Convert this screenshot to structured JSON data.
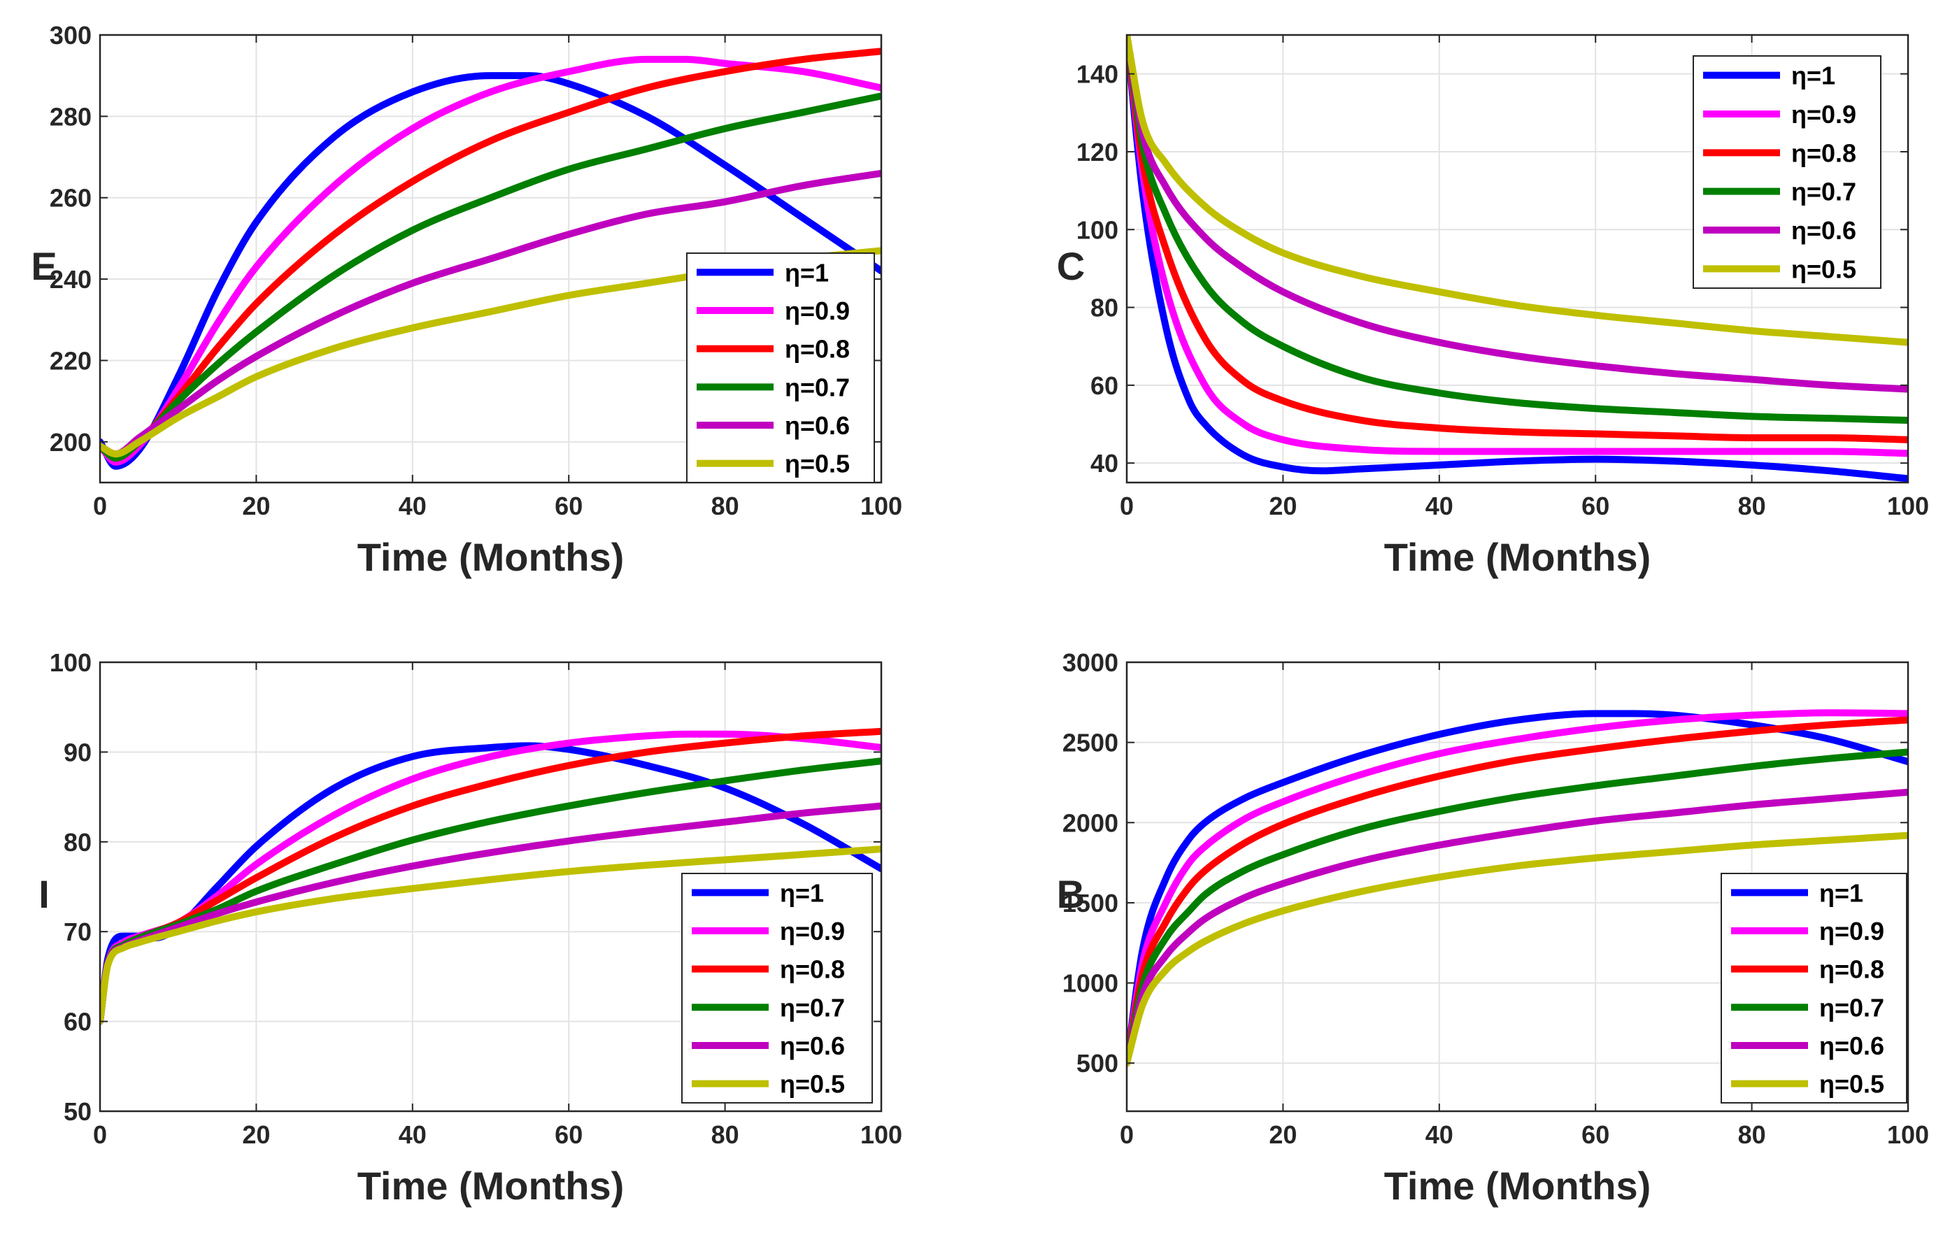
{
  "figure": {
    "eta_symbol": "η",
    "series_colors": {
      "1": "#0000ff",
      "0.9": "#ff00ff",
      "0.8": "#ff0000",
      "0.7": "#007f00",
      "0.6": "#bf00bf",
      "0.5": "#bfbf00"
    }
  },
  "chart_data": [
    {
      "id": "E",
      "type": "line",
      "ylabel": "E",
      "xlabel": "Time (Months)",
      "xlim": [
        0,
        100
      ],
      "ylim": [
        190,
        300
      ],
      "xticks": [
        0,
        20,
        40,
        60,
        80,
        100
      ],
      "yticks": [
        200,
        220,
        240,
        260,
        280,
        300
      ],
      "grid": true,
      "legend_position": "lower-right",
      "legend_order": [
        "η=1",
        "η=0.9",
        "η=0.8",
        "η=0.7",
        "η=0.6",
        "η=0.5"
      ],
      "series": [
        {
          "name": "η=1",
          "eta": "1",
          "x": [
            0,
            2,
            5,
            10,
            15,
            20,
            30,
            40,
            50,
            55,
            60,
            70,
            80,
            90,
            100
          ],
          "values": [
            200,
            194,
            198,
            216,
            237,
            254,
            275,
            286,
            290,
            290,
            288,
            280,
            268,
            255,
            242
          ]
        },
        {
          "name": "η=0.9",
          "eta": "0.9",
          "x": [
            0,
            2,
            5,
            10,
            15,
            20,
            30,
            40,
            50,
            60,
            70,
            75,
            80,
            90,
            100
          ],
          "values": [
            199,
            195,
            199,
            213,
            229,
            243,
            263,
            277,
            286,
            291,
            294,
            294,
            293,
            291,
            287
          ]
        },
        {
          "name": "η=0.8",
          "eta": "0.8",
          "x": [
            0,
            2,
            5,
            10,
            15,
            20,
            30,
            40,
            50,
            60,
            70,
            80,
            90,
            100
          ],
          "values": [
            199,
            196,
            200,
            211,
            223,
            234,
            251,
            264,
            274,
            281,
            287,
            291,
            294,
            296
          ]
        },
        {
          "name": "η=0.7",
          "eta": "0.7",
          "x": [
            0,
            2,
            5,
            10,
            15,
            20,
            30,
            40,
            50,
            60,
            70,
            80,
            90,
            100
          ],
          "values": [
            199,
            196,
            200,
            210,
            219,
            227,
            241,
            252,
            260,
            267,
            272,
            277,
            281,
            285
          ]
        },
        {
          "name": "η=0.6",
          "eta": "0.6",
          "x": [
            0,
            2,
            5,
            10,
            15,
            20,
            30,
            40,
            50,
            60,
            70,
            80,
            90,
            100
          ],
          "values": [
            199,
            197,
            201,
            208,
            215,
            221,
            231,
            239,
            245,
            251,
            256,
            259,
            263,
            266
          ]
        },
        {
          "name": "η=0.5",
          "eta": "0.5",
          "x": [
            0,
            2,
            5,
            10,
            15,
            20,
            30,
            40,
            50,
            60,
            70,
            80,
            90,
            100
          ],
          "values": [
            199,
            197,
            200,
            206,
            211,
            216,
            223,
            228,
            232,
            236,
            239,
            242,
            245,
            247
          ]
        }
      ]
    },
    {
      "id": "C",
      "type": "line",
      "ylabel": "C",
      "xlabel": "Time (Months)",
      "xlim": [
        0,
        100
      ],
      "ylim": [
        35,
        150
      ],
      "xticks": [
        0,
        20,
        40,
        60,
        80,
        100
      ],
      "yticks": [
        40,
        60,
        80,
        100,
        120,
        140
      ],
      "grid": true,
      "legend_position": "top-right",
      "legend_order": [
        "η=1",
        "η=0.9",
        "η=0.8",
        "η=0.7",
        "η=0.6",
        "η=0.5"
      ],
      "series": [
        {
          "name": "η=1",
          "eta": "1",
          "x": [
            0,
            2,
            5,
            8,
            10,
            15,
            20,
            25,
            30,
            40,
            50,
            60,
            70,
            80,
            90,
            100
          ],
          "values": [
            150,
            110,
            75,
            56,
            50,
            42,
            39,
            38,
            38.5,
            39.5,
            40.5,
            41,
            40.5,
            39.5,
            38,
            36
          ]
        },
        {
          "name": "η=0.9",
          "eta": "0.9",
          "x": [
            0,
            2,
            5,
            10,
            15,
            20,
            30,
            40,
            50,
            60,
            70,
            80,
            90,
            100
          ],
          "values": [
            150,
            115,
            85,
            60,
            50,
            46,
            43.5,
            43,
            43,
            43,
            43,
            43,
            43,
            42.5
          ]
        },
        {
          "name": "η=0.8",
          "eta": "0.8",
          "x": [
            0,
            2,
            5,
            10,
            15,
            20,
            30,
            40,
            50,
            60,
            70,
            80,
            90,
            100
          ],
          "values": [
            150,
            118,
            95,
            72,
            61,
            56,
            51,
            49,
            48,
            47.5,
            47,
            46.5,
            46.5,
            46
          ]
        },
        {
          "name": "η=0.7",
          "eta": "0.7",
          "x": [
            0,
            2,
            5,
            10,
            15,
            20,
            30,
            40,
            50,
            60,
            70,
            80,
            90,
            100
          ],
          "values": [
            150,
            122,
            104,
            86,
            76,
            70,
            62,
            58,
            55.5,
            54,
            53,
            52,
            51.5,
            51
          ]
        },
        {
          "name": "η=0.6",
          "eta": "0.6",
          "x": [
            0,
            2,
            5,
            10,
            15,
            20,
            30,
            40,
            50,
            60,
            70,
            80,
            90,
            100
          ],
          "values": [
            150,
            125,
            111,
            98,
            90,
            84,
            76,
            71,
            67.5,
            65,
            63,
            61.5,
            60,
            59
          ]
        },
        {
          "name": "η=0.5",
          "eta": "0.5",
          "x": [
            0,
            2,
            5,
            10,
            15,
            20,
            30,
            40,
            50,
            60,
            70,
            80,
            90,
            100
          ],
          "values": [
            150,
            128,
            117,
            106,
            99,
            94,
            88,
            84,
            80.5,
            78,
            76,
            74,
            72.5,
            71
          ]
        }
      ]
    },
    {
      "id": "I",
      "type": "line",
      "ylabel": "I",
      "xlabel": "Time (Months)",
      "xlim": [
        0,
        100
      ],
      "ylim": [
        50,
        100
      ],
      "xticks": [
        0,
        20,
        40,
        60,
        80,
        100
      ],
      "yticks": [
        50,
        60,
        70,
        80,
        90,
        100
      ],
      "grid": true,
      "legend_position": "lower-right",
      "legend_order": [
        "η=1",
        "η=0.9",
        "η=0.8",
        "η=0.7",
        "η=0.6",
        "η=0.5"
      ],
      "series": [
        {
          "name": "η=1",
          "eta": "1",
          "x": [
            0,
            1,
            3,
            5,
            7,
            10,
            15,
            20,
            30,
            40,
            50,
            55,
            60,
            70,
            80,
            90,
            100
          ],
          "values": [
            60,
            67,
            69.5,
            69.5,
            69.3,
            70.5,
            75,
            79.5,
            86,
            89.5,
            90.5,
            90.7,
            90.3,
            88.5,
            86,
            82,
            77
          ]
        },
        {
          "name": "η=0.9",
          "eta": "0.9",
          "x": [
            0,
            1,
            3,
            5,
            10,
            15,
            20,
            30,
            40,
            50,
            60,
            70,
            75,
            80,
            90,
            100
          ],
          "values": [
            60,
            66.5,
            68.8,
            69.5,
            71,
            74,
            77.5,
            83,
            87,
            89.5,
            91,
            91.8,
            92,
            92,
            91.5,
            90.5
          ]
        },
        {
          "name": "η=0.8",
          "eta": "0.8",
          "x": [
            0,
            1,
            3,
            5,
            10,
            15,
            20,
            30,
            40,
            50,
            60,
            70,
            80,
            90,
            100
          ],
          "values": [
            60,
            66.5,
            68.5,
            69.3,
            71,
            73.5,
            76,
            80.5,
            84,
            86.5,
            88.5,
            90,
            91,
            91.8,
            92.3
          ]
        },
        {
          "name": "η=0.7",
          "eta": "0.7",
          "x": [
            0,
            1,
            3,
            5,
            10,
            15,
            20,
            30,
            40,
            50,
            60,
            70,
            80,
            90,
            100
          ],
          "values": [
            60,
            66.5,
            68.5,
            69.3,
            70.8,
            72.5,
            74.5,
            77.5,
            80.2,
            82.3,
            84,
            85.5,
            86.8,
            88,
            89
          ]
        },
        {
          "name": "η=0.6",
          "eta": "0.6",
          "x": [
            0,
            1,
            3,
            5,
            10,
            15,
            20,
            30,
            40,
            50,
            60,
            70,
            80,
            90,
            100
          ],
          "values": [
            60,
            66.5,
            68.3,
            69,
            70.5,
            72,
            73.3,
            75.5,
            77.3,
            78.8,
            80.1,
            81.2,
            82.2,
            83.2,
            84
          ]
        },
        {
          "name": "η=0.5",
          "eta": "0.5",
          "x": [
            0,
            1,
            3,
            5,
            10,
            15,
            20,
            30,
            40,
            50,
            60,
            70,
            80,
            90,
            100
          ],
          "values": [
            60,
            66.3,
            68.2,
            68.8,
            70,
            71.2,
            72.2,
            73.7,
            74.8,
            75.8,
            76.7,
            77.4,
            78,
            78.6,
            79.2
          ]
        }
      ]
    },
    {
      "id": "B",
      "type": "line",
      "ylabel": "B",
      "xlabel": "Time (Months)",
      "xlim": [
        0,
        100
      ],
      "ylim": [
        200,
        3000
      ],
      "xticks": [
        0,
        20,
        40,
        60,
        80,
        100
      ],
      "yticks": [
        500,
        1000,
        1500,
        2000,
        2500,
        3000
      ],
      "grid": true,
      "legend_position": "lower-right",
      "legend_order": [
        "η=1",
        "η=0.9",
        "η=0.8",
        "η=0.7",
        "η=0.6",
        "η=0.5"
      ],
      "series": [
        {
          "name": "η=1",
          "eta": "1",
          "x": [
            0,
            2,
            5,
            8,
            10,
            15,
            20,
            30,
            40,
            50,
            60,
            65,
            70,
            80,
            90,
            100
          ],
          "values": [
            500,
            1200,
            1650,
            1900,
            2000,
            2150,
            2250,
            2420,
            2550,
            2640,
            2680,
            2680,
            2670,
            2610,
            2520,
            2380
          ]
        },
        {
          "name": "η=0.9",
          "eta": "0.9",
          "x": [
            0,
            2,
            5,
            8,
            10,
            15,
            20,
            30,
            40,
            50,
            60,
            70,
            80,
            90,
            100
          ],
          "values": [
            500,
            1120,
            1500,
            1750,
            1850,
            2020,
            2130,
            2300,
            2430,
            2520,
            2590,
            2640,
            2670,
            2685,
            2680
          ]
        },
        {
          "name": "η=0.8",
          "eta": "0.8",
          "x": [
            0,
            2,
            5,
            8,
            10,
            15,
            20,
            30,
            40,
            50,
            60,
            70,
            80,
            90,
            100
          ],
          "values": [
            500,
            1050,
            1380,
            1600,
            1700,
            1870,
            1990,
            2160,
            2290,
            2390,
            2460,
            2520,
            2570,
            2610,
            2640
          ]
        },
        {
          "name": "η=0.7",
          "eta": "0.7",
          "x": [
            0,
            2,
            5,
            8,
            10,
            15,
            20,
            30,
            40,
            50,
            60,
            70,
            80,
            90,
            100
          ],
          "values": [
            500,
            980,
            1280,
            1450,
            1550,
            1700,
            1800,
            1960,
            2070,
            2160,
            2230,
            2290,
            2350,
            2400,
            2440
          ]
        },
        {
          "name": "η=0.6",
          "eta": "0.6",
          "x": [
            0,
            2,
            5,
            8,
            10,
            15,
            20,
            30,
            40,
            50,
            60,
            70,
            80,
            90,
            100
          ],
          "values": [
            500,
            920,
            1170,
            1320,
            1400,
            1530,
            1620,
            1760,
            1860,
            1940,
            2010,
            2060,
            2110,
            2150,
            2190
          ]
        },
        {
          "name": "η=0.5",
          "eta": "0.5",
          "x": [
            0,
            2,
            5,
            8,
            10,
            15,
            20,
            30,
            40,
            50,
            60,
            70,
            80,
            90,
            100
          ],
          "values": [
            500,
            860,
            1080,
            1200,
            1260,
            1370,
            1450,
            1570,
            1660,
            1730,
            1780,
            1820,
            1860,
            1890,
            1920
          ]
        }
      ]
    }
  ]
}
